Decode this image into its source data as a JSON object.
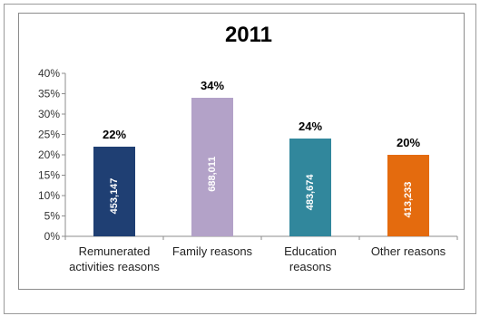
{
  "chart_data": {
    "type": "bar",
    "title": "2011",
    "categories": [
      [
        "Remunerated",
        "activities reasons"
      ],
      [
        "Family reasons"
      ],
      [
        "Education",
        "reasons"
      ],
      [
        "Other reasons"
      ]
    ],
    "values": [
      22,
      34,
      24,
      20
    ],
    "value_labels": [
      "22%",
      "34%",
      "24%",
      "20%"
    ],
    "inner_labels": [
      "453,147",
      "688,011",
      "483,674",
      "413,233"
    ],
    "colors": [
      "#1f3f73",
      "#b3a2c8",
      "#31879c",
      "#e46b0e"
    ],
    "y_ticks": [
      "0%",
      "5%",
      "10%",
      "15%",
      "20%",
      "25%",
      "30%",
      "35%",
      "40%"
    ],
    "ylim": [
      0,
      40
    ],
    "grid": false,
    "legend": "none"
  }
}
